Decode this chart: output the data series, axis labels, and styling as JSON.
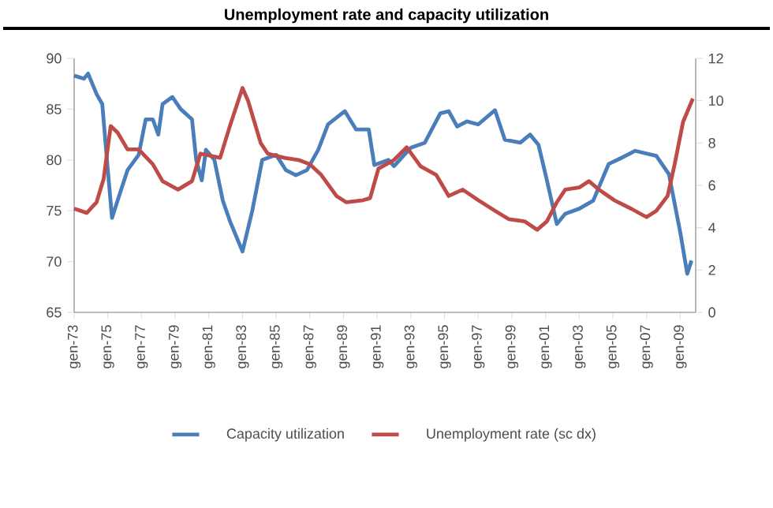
{
  "chart_data": {
    "type": "line",
    "title": "Unemployment rate and capacity utilization",
    "xlim": [
      "1973-01",
      "2009-12"
    ],
    "xticks": [
      {
        "value": "1973-01",
        "label": "gen-73"
      },
      {
        "value": "1975-01",
        "label": "gen-75"
      },
      {
        "value": "1977-01",
        "label": "gen-77"
      },
      {
        "value": "1979-01",
        "label": "gen-79"
      },
      {
        "value": "1981-01",
        "label": "gen-81"
      },
      {
        "value": "1983-01",
        "label": "gen-83"
      },
      {
        "value": "1985-01",
        "label": "gen-85"
      },
      {
        "value": "1987-01",
        "label": "gen-87"
      },
      {
        "value": "1989-01",
        "label": "gen-89"
      },
      {
        "value": "1991-01",
        "label": "gen-91"
      },
      {
        "value": "1993-01",
        "label": "gen-93"
      },
      {
        "value": "1995-01",
        "label": "gen-95"
      },
      {
        "value": "1997-01",
        "label": "gen-97"
      },
      {
        "value": "1999-01",
        "label": "gen-99"
      },
      {
        "value": "2001-01",
        "label": "gen-01"
      },
      {
        "value": "2003-01",
        "label": "gen-03"
      },
      {
        "value": "2005-01",
        "label": "gen-05"
      },
      {
        "value": "2007-01",
        "label": "gen-07"
      },
      {
        "value": "2009-01",
        "label": "gen-09"
      }
    ],
    "ylim": [
      65,
      90
    ],
    "yticks": [
      65,
      70,
      75,
      80,
      85,
      90
    ],
    "y2lim": [
      0,
      12
    ],
    "y2ticks": [
      0,
      2,
      4,
      6,
      8,
      10,
      12
    ],
    "legend": "bottom",
    "marker": "none",
    "line_style": "solid",
    "series": [
      {
        "name": "Capacity utilization",
        "color": "#4a7ebb",
        "x": [
          "1973-01",
          "1973-08",
          "1973-11",
          "1974-05",
          "1974-09",
          "1975-01",
          "1975-04",
          "1975-08",
          "1976-03",
          "1976-11",
          "1977-04",
          "1977-09",
          "1978-01",
          "1978-04",
          "1978-11",
          "1979-05",
          "1980-01",
          "1980-04",
          "1980-08",
          "1980-11",
          "1981-05",
          "1981-11",
          "1982-04",
          "1983-01",
          "1983-08",
          "1984-03",
          "1985-01",
          "1985-08",
          "1986-03",
          "1986-11",
          "1987-07",
          "1988-02",
          "1989-02",
          "1989-10",
          "1990-07",
          "1990-11",
          "1991-09",
          "1992-01",
          "1993-01",
          "1993-11",
          "1994-10",
          "1995-04",
          "1995-10",
          "1996-05",
          "1997-01",
          "1998-01",
          "1998-08",
          "1999-07",
          "2000-02",
          "2000-08",
          "2001-02",
          "2001-09",
          "2002-03",
          "2003-01",
          "2003-11",
          "2004-10",
          "2005-07",
          "2006-05",
          "2007-08",
          "2008-05",
          "2009-01",
          "2009-06",
          "2009-09"
        ],
        "values": [
          88.3,
          88,
          88.5,
          86.5,
          85.5,
          79,
          74.3,
          76,
          79,
          80.5,
          84,
          84,
          82.5,
          85.5,
          86.2,
          85,
          84,
          80,
          78,
          81,
          80,
          76,
          74,
          71,
          75,
          80,
          80.5,
          79,
          78.5,
          79,
          81,
          83.5,
          84.8,
          83,
          83,
          79.5,
          80,
          79.4,
          81.2,
          81.7,
          84.6,
          84.8,
          83.3,
          83.8,
          83.5,
          84.9,
          82,
          81.7,
          82.5,
          81.5,
          78,
          73.7,
          74.7,
          75.2,
          76,
          79.6,
          80.2,
          80.9,
          80.4,
          78.6,
          72.9,
          68.8,
          70.1
        ]
      },
      {
        "name": "Unemployment rate (sc dx)",
        "color": "#be4b48",
        "axis": "y2",
        "x": [
          "1973-01",
          "1973-10",
          "1974-05",
          "1974-10",
          "1975-03",
          "1975-08",
          "1976-03",
          "1976-11",
          "1977-09",
          "1978-04",
          "1979-03",
          "1980-01",
          "1980-07",
          "1981-02",
          "1981-09",
          "1982-04",
          "1983-01",
          "1983-05",
          "1984-02",
          "1984-07",
          "1985-07",
          "1986-05",
          "1987-01",
          "1987-09",
          "1988-08",
          "1989-03",
          "1990-03",
          "1990-08",
          "1991-02",
          "1992-01",
          "1992-10",
          "1993-08",
          "1994-07",
          "1995-04",
          "1996-02",
          "1997-01",
          "1998-01",
          "1998-11",
          "1999-10",
          "2000-07",
          "2001-02",
          "2001-09",
          "2002-03",
          "2003-01",
          "2003-08",
          "2004-03",
          "2005-02",
          "2006-02",
          "2007-01",
          "2007-08",
          "2008-04",
          "2008-09",
          "2009-03",
          "2009-10"
        ],
        "values": [
          4.9,
          4.7,
          5.2,
          6.3,
          8.8,
          8.5,
          7.7,
          7.7,
          7.0,
          6.2,
          5.8,
          6.2,
          7.5,
          7.4,
          7.3,
          8.8,
          10.6,
          10.0,
          8.0,
          7.5,
          7.3,
          7.2,
          7.0,
          6.5,
          5.5,
          5.2,
          5.3,
          5.4,
          6.8,
          7.2,
          7.8,
          6.9,
          6.5,
          5.5,
          5.8,
          5.3,
          4.8,
          4.4,
          4.3,
          3.9,
          4.3,
          5.2,
          5.8,
          5.9,
          6.2,
          5.8,
          5.3,
          4.9,
          4.5,
          4.8,
          5.5,
          7.0,
          9.0,
          10.1
        ]
      }
    ]
  }
}
